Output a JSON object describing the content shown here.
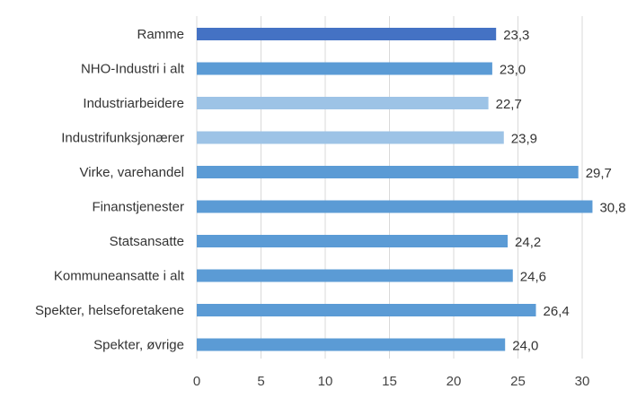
{
  "chart_data": {
    "type": "bar",
    "orientation": "horizontal",
    "categories": [
      "Ramme",
      "NHO-Industri i alt",
      "Industriarbeidere",
      "Industrifunksjonærer",
      "Virke, varehandel",
      "Finanstjenester",
      "Statsansatte",
      "Kommuneansatte i alt",
      "Spekter, helseforetakene",
      "Spekter, øvrige"
    ],
    "values": [
      23.3,
      23.0,
      22.7,
      23.9,
      29.7,
      30.8,
      24.2,
      24.6,
      26.4,
      24.0
    ],
    "value_labels": [
      "23,3",
      "23,0",
      "22,7",
      "23,9",
      "29,7",
      "30,8",
      "24,2",
      "24,6",
      "26,4",
      "24,0"
    ],
    "bar_colors": [
      "#4472c4",
      "#5b9bd5",
      "#9dc3e6",
      "#9dc3e6",
      "#5b9bd5",
      "#5b9bd5",
      "#5b9bd5",
      "#5b9bd5",
      "#5b9bd5",
      "#5b9bd5"
    ],
    "xlim": [
      0,
      30
    ],
    "xticks": [
      0,
      5,
      10,
      15,
      20,
      25,
      30
    ],
    "xtick_labels": [
      "0",
      "5",
      "10",
      "15",
      "20",
      "25",
      "30"
    ],
    "grid": "vertical",
    "legend": "none"
  }
}
